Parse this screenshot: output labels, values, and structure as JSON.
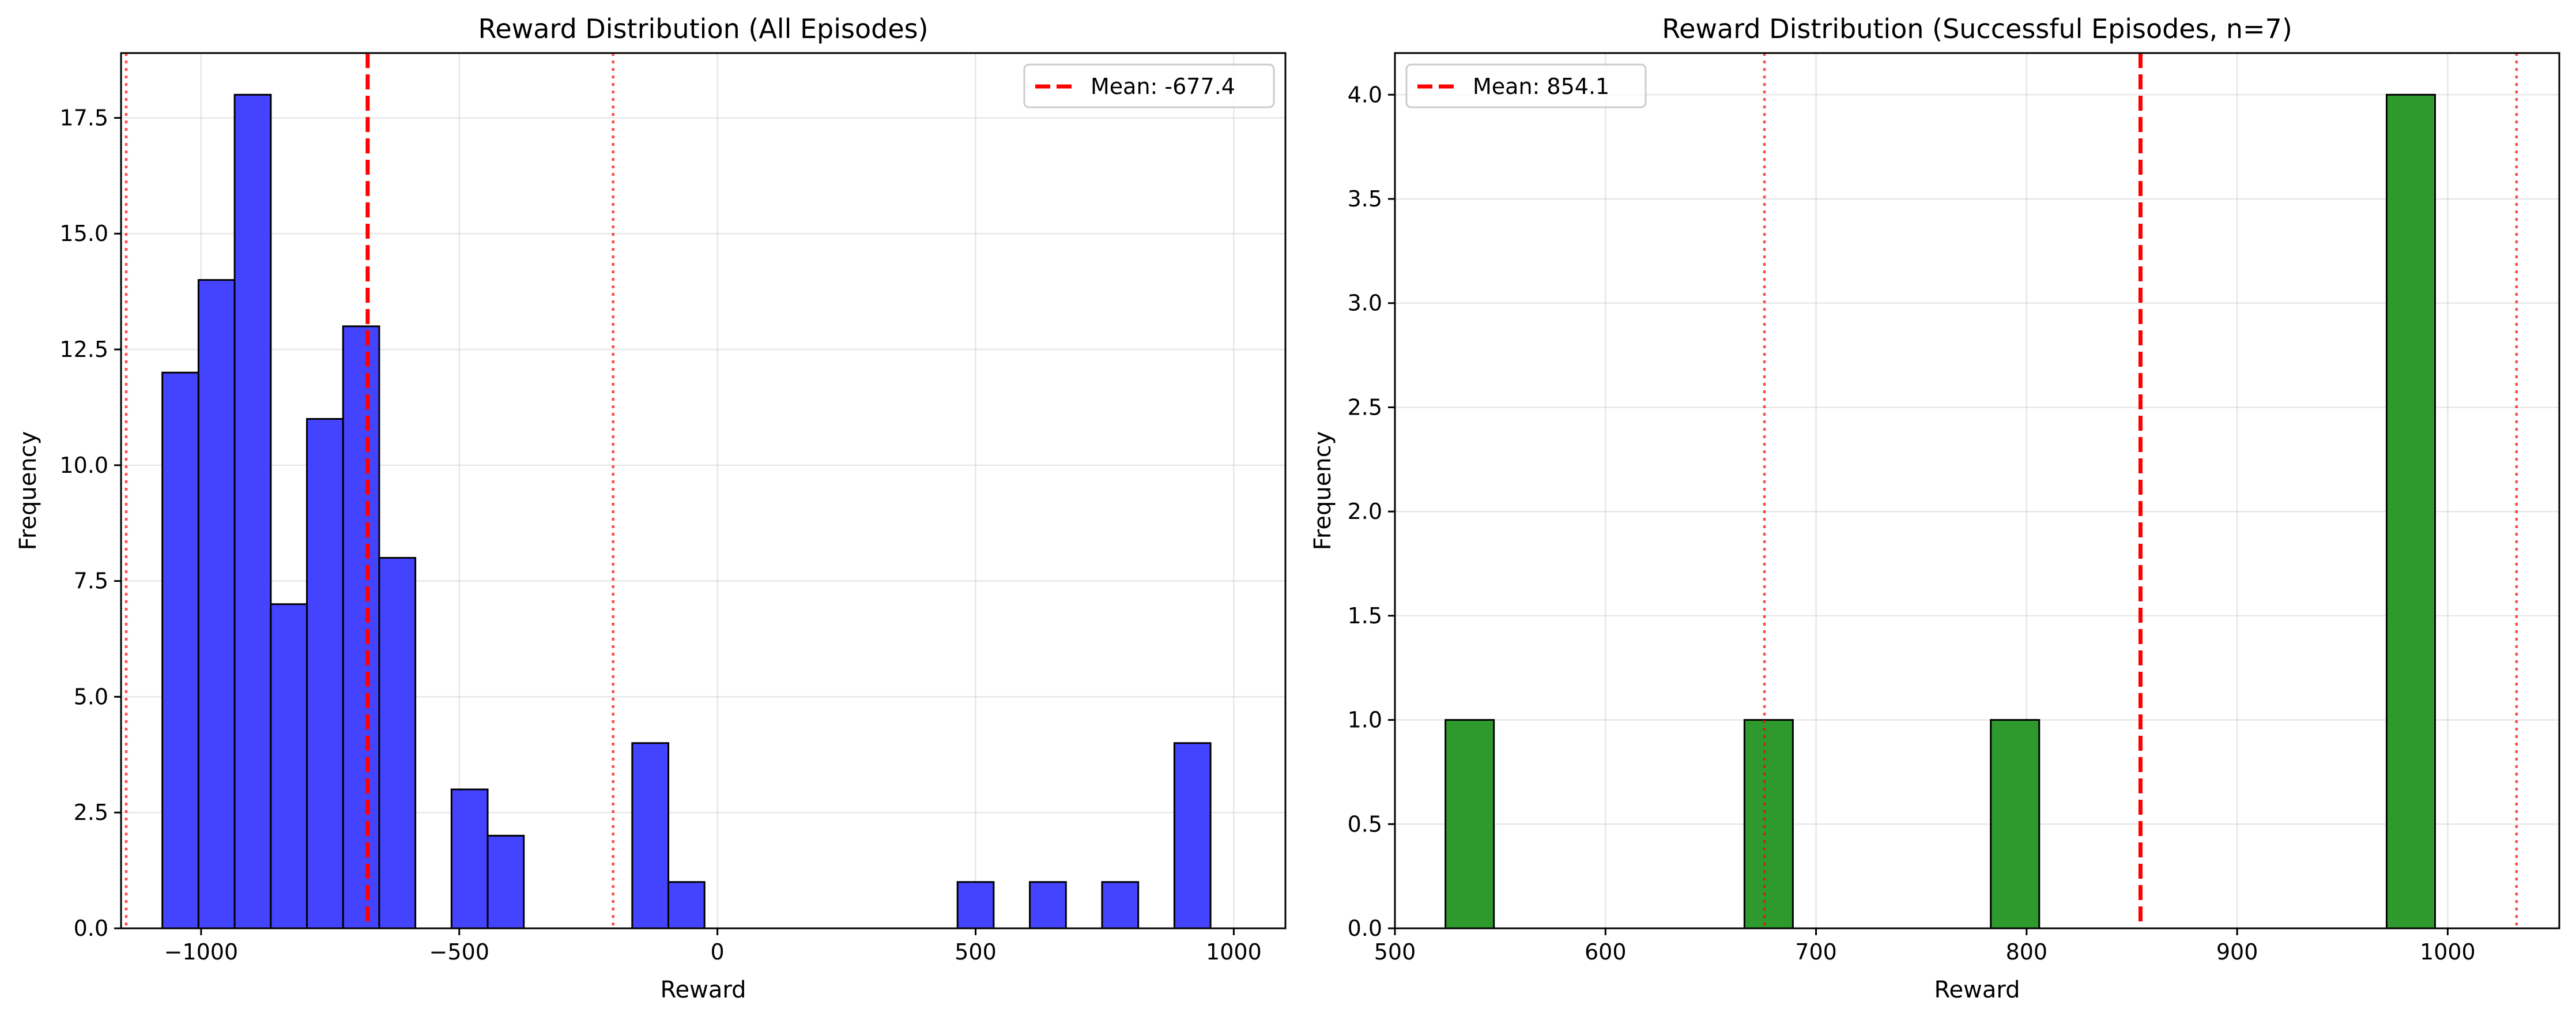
{
  "chart_data": [
    {
      "type": "bar",
      "title": "Reward Distribution (All Episodes)",
      "xlabel": "Reward",
      "ylabel": "Frequency",
      "xlim": [
        -1155,
        1100
      ],
      "ylim": [
        0,
        18.9
      ],
      "xticks": [
        -1000,
        -500,
        0,
        500,
        1000
      ],
      "xtick_labels": [
        "−1000",
        "−500",
        "0",
        "500",
        "1000"
      ],
      "yticks": [
        0,
        2.5,
        5,
        7.5,
        10,
        12.5,
        15,
        17.5
      ],
      "ytick_labels": [
        "0.0",
        "2.5",
        "5.0",
        "7.5",
        "10.0",
        "12.5",
        "15.0",
        "17.5"
      ],
      "bar_color": "#4444ff",
      "bins": [
        {
          "x0": -1075,
          "x1": -1005,
          "count": 12
        },
        {
          "x0": -1005,
          "x1": -935,
          "count": 14
        },
        {
          "x0": -935,
          "x1": -865,
          "count": 18
        },
        {
          "x0": -865,
          "x1": -795,
          "count": 7
        },
        {
          "x0": -795,
          "x1": -725,
          "count": 11
        },
        {
          "x0": -725,
          "x1": -655,
          "count": 13
        },
        {
          "x0": -655,
          "x1": -585,
          "count": 8
        },
        {
          "x0": -515,
          "x1": -445,
          "count": 3
        },
        {
          "x0": -445,
          "x1": -375,
          "count": 2
        },
        {
          "x0": -165,
          "x1": -95,
          "count": 4
        },
        {
          "x0": -95,
          "x1": -25,
          "count": 1
        },
        {
          "x0": 465,
          "x1": 535,
          "count": 1
        },
        {
          "x0": 605,
          "x1": 675,
          "count": 1
        },
        {
          "x0": 745,
          "x1": 815,
          "count": 1
        },
        {
          "x0": 885,
          "x1": 955,
          "count": 4
        }
      ],
      "mean": -677.4,
      "std_lines": [
        -1145,
        -202
      ],
      "legend": {
        "label": "Mean: -677.4",
        "position": "upper right"
      },
      "grid": true
    },
    {
      "type": "bar",
      "title": "Reward Distribution (Successful Episodes, n=7)",
      "xlabel": "Reward",
      "ylabel": "Frequency",
      "xlim": [
        500,
        1053
      ],
      "ylim": [
        0,
        4.2
      ],
      "xticks": [
        500,
        600,
        700,
        800,
        900,
        1000
      ],
      "xtick_labels": [
        "500",
        "600",
        "700",
        "800",
        "900",
        "1000"
      ],
      "yticks": [
        0,
        0.5,
        1,
        1.5,
        2,
        2.5,
        3,
        3.5,
        4
      ],
      "ytick_labels": [
        "0.0",
        "0.5",
        "1.0",
        "1.5",
        "2.0",
        "2.5",
        "3.0",
        "3.5",
        "4.0"
      ],
      "bar_color": "#2e9a2e",
      "bins": [
        {
          "x0": 524,
          "x1": 547,
          "count": 1
        },
        {
          "x0": 666,
          "x1": 689,
          "count": 1
        },
        {
          "x0": 783,
          "x1": 806,
          "count": 1
        },
        {
          "x0": 971,
          "x1": 994,
          "count": 4
        }
      ],
      "mean": 854.1,
      "std_lines": [
        675.5,
        1032.7
      ],
      "legend": {
        "label": "Mean: 854.1",
        "position": "upper left"
      },
      "grid": true
    }
  ]
}
